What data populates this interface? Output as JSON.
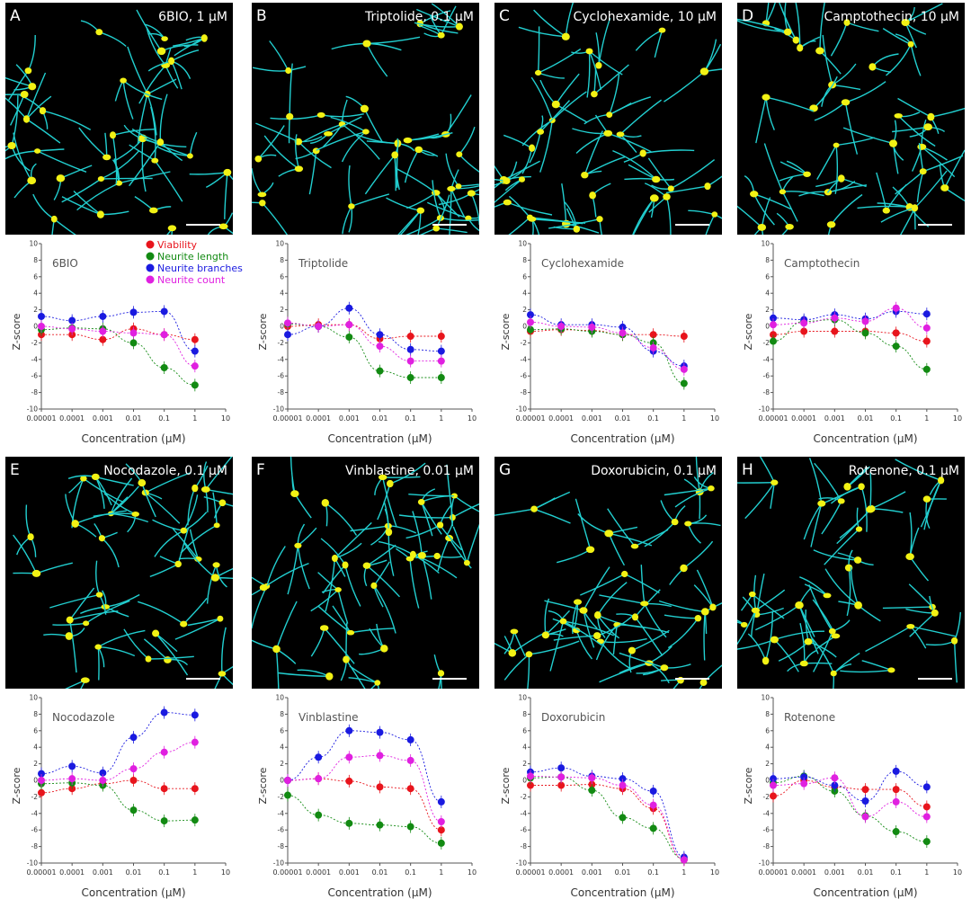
{
  "figure": {
    "shared": {
      "xlabel": "Concentration (μM)",
      "ylabel": "Z-score",
      "x_ticks": [
        "0.00001",
        "0.0001",
        "0.001",
        "0.01",
        "0.1",
        "1",
        "10"
      ],
      "y_ticks": [
        "10",
        "8",
        "6",
        "4",
        "2",
        "0",
        "-2",
        "-4",
        "-6",
        "-8",
        "-10"
      ],
      "legend": [
        {
          "name": "Viability",
          "color": "#e8141c"
        },
        {
          "name": "Neurite length",
          "color": "#128a12"
        },
        {
          "name": "Neurite branches",
          "color": "#1a1ae0"
        },
        {
          "name": "Neurite count",
          "color": "#e020e0"
        }
      ],
      "colors": {
        "neurite": "#22cfd0",
        "soma": "#f2f214",
        "background": "#000000",
        "scale_bar": "#ffffff"
      }
    }
  },
  "chart_data": [
    {
      "type": "scatter",
      "panel_letter": "A",
      "image_title": "6BIO, 1 μM",
      "chart_label": "6BIO",
      "x": [
        0.0001,
        0.001,
        0.01,
        0.1,
        1,
        10
      ],
      "ylim": [
        -10,
        10
      ],
      "x_scale": "log",
      "series": [
        {
          "name": "Viability",
          "values": [
            -1.0,
            -1.0,
            -1.6,
            -0.3,
            -1.0,
            -1.6
          ]
        },
        {
          "name": "Neurite length",
          "values": [
            -0.4,
            -0.2,
            -0.3,
            -2.0,
            -5.0,
            -7.1
          ]
        },
        {
          "name": "Neurite branches",
          "values": [
            1.2,
            0.7,
            1.2,
            1.7,
            1.8,
            -3.0
          ]
        },
        {
          "name": "Neurite count",
          "values": [
            0.0,
            -0.3,
            -0.6,
            -0.8,
            -1.0,
            -4.8
          ]
        }
      ]
    },
    {
      "type": "scatter",
      "panel_letter": "B",
      "image_title": "Triptolide, 0.1 μM",
      "chart_label": "Triptolide",
      "x": [
        0.0001,
        0.001,
        0.01,
        0.1,
        1,
        10
      ],
      "ylim": [
        -10,
        10
      ],
      "x_scale": "log",
      "series": [
        {
          "name": "Viability",
          "values": [
            0.0,
            0.2,
            0.2,
            -1.5,
            -1.2,
            -1.2
          ]
        },
        {
          "name": "Neurite length",
          "values": [
            0.3,
            0.0,
            -1.3,
            -5.4,
            -6.2,
            -6.2
          ]
        },
        {
          "name": "Neurite branches",
          "values": [
            -1.0,
            0.0,
            2.2,
            -1.0,
            -2.8,
            -3.0
          ]
        },
        {
          "name": "Neurite count",
          "values": [
            0.4,
            0.0,
            0.2,
            -2.4,
            -4.2,
            -4.2
          ]
        }
      ]
    },
    {
      "type": "scatter",
      "panel_letter": "C",
      "image_title": "Cyclohexamide, 10 μM",
      "chart_label": "Cyclohexamide",
      "x": [
        0.0001,
        0.001,
        0.01,
        0.1,
        1,
        10
      ],
      "ylim": [
        -10,
        10
      ],
      "x_scale": "log",
      "series": [
        {
          "name": "Viability",
          "values": [
            -0.6,
            -0.4,
            -0.5,
            -1.0,
            -1.0,
            -1.2
          ]
        },
        {
          "name": "Neurite length",
          "values": [
            -0.4,
            -0.3,
            -0.6,
            -1.0,
            -2.0,
            -6.9
          ]
        },
        {
          "name": "Neurite branches",
          "values": [
            1.4,
            0.2,
            0.2,
            -0.1,
            -3.0,
            -4.8
          ]
        },
        {
          "name": "Neurite count",
          "values": [
            0.5,
            0.0,
            -0.1,
            -0.8,
            -2.6,
            -5.2
          ]
        }
      ]
    },
    {
      "type": "scatter",
      "panel_letter": "D",
      "image_title": "Camptothecin, 10  μM",
      "chart_label": "Camptothecin",
      "x": [
        0.0001,
        0.001,
        0.01,
        0.1,
        1,
        10
      ],
      "ylim": [
        -10,
        10
      ],
      "x_scale": "log",
      "series": [
        {
          "name": "Viability",
          "values": [
            -1.0,
            -0.6,
            -0.6,
            -0.6,
            -0.8,
            -1.8
          ]
        },
        {
          "name": "Neurite length",
          "values": [
            -1.8,
            0.6,
            0.8,
            -0.8,
            -2.4,
            -5.2
          ]
        },
        {
          "name": "Neurite branches",
          "values": [
            1.0,
            0.8,
            1.4,
            0.9,
            1.8,
            1.5
          ]
        },
        {
          "name": "Neurite count",
          "values": [
            0.2,
            0.4,
            1.0,
            0.6,
            2.2,
            -0.2
          ]
        }
      ]
    },
    {
      "type": "scatter",
      "panel_letter": "E",
      "image_title": "Nocodazole, 0.1  μM",
      "chart_label": "Nocodazole",
      "x": [
        0.0001,
        0.001,
        0.01,
        0.1,
        1,
        10
      ],
      "ylim": [
        -10,
        10
      ],
      "x_scale": "log",
      "series": [
        {
          "name": "Viability",
          "values": [
            -1.5,
            -1.0,
            -0.4,
            0.0,
            -1.0,
            -1.0
          ]
        },
        {
          "name": "Neurite length",
          "values": [
            -0.4,
            -0.3,
            -0.6,
            -3.6,
            -4.9,
            -4.8
          ]
        },
        {
          "name": "Neurite branches",
          "values": [
            0.8,
            1.7,
            0.9,
            5.2,
            8.2,
            7.9
          ]
        },
        {
          "name": "Neurite count",
          "values": [
            0.0,
            0.2,
            0.0,
            1.4,
            3.4,
            4.6
          ]
        }
      ]
    },
    {
      "type": "scatter",
      "panel_letter": "F",
      "image_title": "Vinblastine, 0.01  μM",
      "chart_label": "Vinblastine",
      "x": [
        0.0001,
        0.001,
        0.01,
        0.1,
        1,
        10
      ],
      "ylim": [
        -10,
        10
      ],
      "x_scale": "log",
      "series": [
        {
          "name": "Viability",
          "values": [
            0.0,
            0.2,
            -0.1,
            -0.8,
            -1.0,
            -6.0
          ]
        },
        {
          "name": "Neurite length",
          "values": [
            -1.8,
            -4.2,
            -5.2,
            -5.4,
            -5.6,
            -7.6
          ]
        },
        {
          "name": "Neurite branches",
          "values": [
            0.0,
            2.8,
            6.0,
            5.8,
            4.9,
            -2.6
          ]
        },
        {
          "name": "Neurite count",
          "values": [
            0.0,
            0.2,
            2.8,
            3.0,
            2.4,
            -5.0
          ]
        }
      ]
    },
    {
      "type": "scatter",
      "panel_letter": "G",
      "image_title": "Doxorubicin, 0.1  μM",
      "chart_label": "Doxorubicin",
      "x": [
        0.0001,
        0.001,
        0.01,
        0.1,
        1,
        10
      ],
      "ylim": [
        -10,
        10
      ],
      "x_scale": "log",
      "series": [
        {
          "name": "Viability",
          "values": [
            -0.6,
            -0.6,
            -0.5,
            -1.0,
            -3.4,
            -9.6
          ]
        },
        {
          "name": "Neurite length",
          "values": [
            0.3,
            0.4,
            -1.2,
            -4.5,
            -5.8,
            -9.5
          ]
        },
        {
          "name": "Neurite branches",
          "values": [
            1.0,
            1.5,
            0.5,
            0.2,
            -1.3,
            -9.3
          ]
        },
        {
          "name": "Neurite count",
          "values": [
            0.5,
            0.4,
            0.3,
            -0.6,
            -3.0,
            -9.6
          ]
        }
      ]
    },
    {
      "type": "scatter",
      "panel_letter": "H",
      "image_title": "Rotenone, 0.1  μM",
      "chart_label": "Rotenone",
      "x": [
        0.0001,
        0.001,
        0.01,
        0.1,
        1,
        10
      ],
      "ylim": [
        -10,
        10
      ],
      "x_scale": "log",
      "series": [
        {
          "name": "Viability",
          "values": [
            -1.9,
            0.0,
            -0.8,
            -1.1,
            -1.1,
            -3.2
          ]
        },
        {
          "name": "Neurite length",
          "values": [
            -0.3,
            0.5,
            -1.3,
            -4.3,
            -6.2,
            -7.4
          ]
        },
        {
          "name": "Neurite branches",
          "values": [
            0.2,
            0.4,
            -0.6,
            -2.5,
            1.1,
            -0.8
          ]
        },
        {
          "name": "Neurite count",
          "values": [
            -0.6,
            -0.4,
            0.3,
            -4.4,
            -2.6,
            -4.4
          ]
        }
      ]
    }
  ]
}
